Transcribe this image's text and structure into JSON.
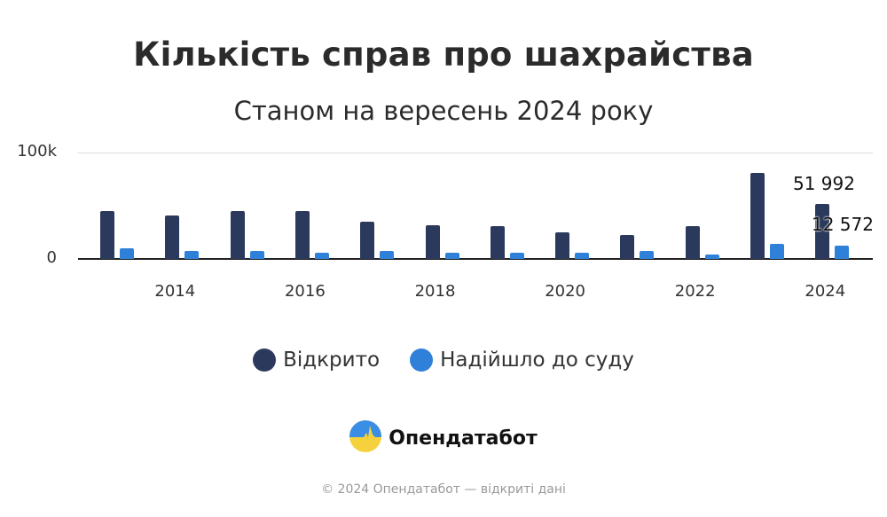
{
  "header": {
    "title": "Кількість справ про шахрайства",
    "subtitle": "Станом на вересень 2024 року"
  },
  "legend": [
    {
      "label": "Відкрито",
      "color": "#2b3a5c"
    },
    {
      "label": "Надійшло до суду",
      "color": "#2f80d8"
    }
  ],
  "brand": {
    "name": "Опендатабот"
  },
  "footer": {
    "text": "© 2024 Опендатабот — відкриті дані"
  },
  "chart_data": {
    "type": "bar",
    "title": "Кількість справ про шахрайства",
    "subtitle": "Станом на вересень 2024 року",
    "categories": [
      "2013",
      "2014",
      "2015",
      "2016",
      "2017",
      "2018",
      "2019",
      "2020",
      "2021",
      "2022",
      "2023",
      "2024"
    ],
    "x_tick_labels": [
      "2014",
      "2016",
      "2018",
      "2020",
      "2022",
      "2024"
    ],
    "y_tick_labels": [
      "0",
      "100k"
    ],
    "ylim": [
      0,
      100000
    ],
    "grid": true,
    "legend_position": "bottom",
    "series": [
      {
        "name": "Відкрито",
        "color": "#2b3a5c",
        "values": [
          45000,
          41000,
          45000,
          45000,
          35000,
          32000,
          31000,
          25000,
          22500,
          31000,
          81000,
          51992
        ]
      },
      {
        "name": "Надійшло до суду",
        "color": "#2f80d8",
        "values": [
          10000,
          7500,
          7500,
          6000,
          7500,
          6000,
          6000,
          6000,
          7500,
          4000,
          14000,
          12572
        ]
      }
    ],
    "annotations": [
      {
        "text": "51 992",
        "series": "Відкрито",
        "category": "2024"
      },
      {
        "text": "12 572",
        "series": "Надійшло до суду",
        "category": "2024"
      }
    ]
  }
}
